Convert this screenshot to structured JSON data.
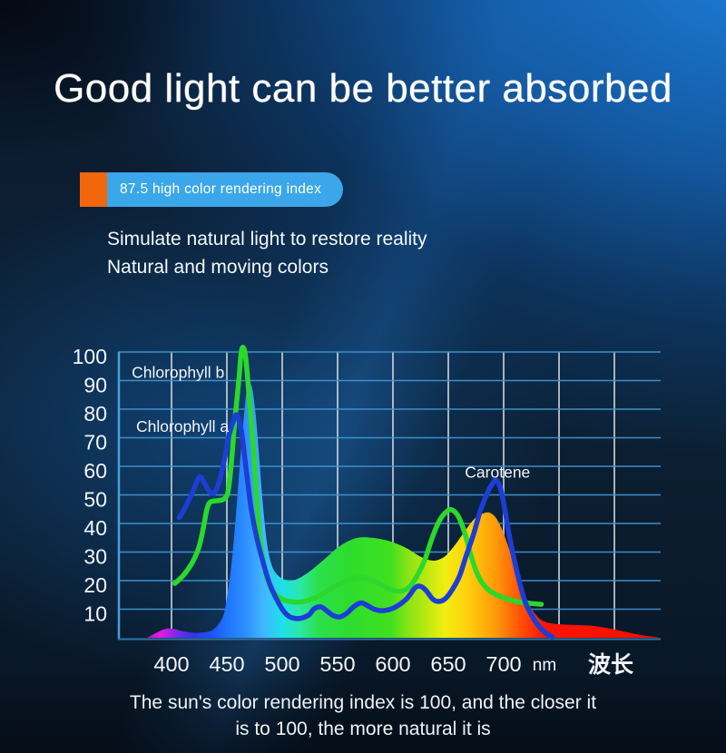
{
  "header": {
    "title": "Good light can be better absorbed"
  },
  "badge": {
    "text": "87.5 high color rendering index",
    "accent_color": "#f2670c",
    "pill_color": "#3ba7ea"
  },
  "subtitle": {
    "line1": "Simulate natural light to restore reality",
    "line2": "Natural and moving colors"
  },
  "caption": {
    "line1": "The sun's color rendering index is 100, and the closer it",
    "line2": "is to 100, the more natural it is"
  },
  "chart_data": {
    "type": "area",
    "title": "",
    "xlabel": "波长",
    "x_unit": "nm",
    "ylim": [
      0,
      100
    ],
    "grid": true,
    "x_axis": {
      "tick_labels": [
        400,
        450,
        500,
        550,
        600,
        650,
        700
      ],
      "gridlines_nm": [
        400,
        450,
        500,
        550,
        600,
        650,
        700,
        750,
        800
      ]
    },
    "y_axis": {
      "tick_labels": [
        100,
        90,
        80,
        70,
        60,
        50,
        40,
        30,
        20,
        10
      ]
    },
    "colors": {
      "h_grid": "#4094d2",
      "v_grid": "#ccd7de",
      "axis": "#4b9fd9",
      "baseline": "#2f74a8",
      "chlorophyll_b_line": "#2bd82b",
      "chlorophyll_a_line": "#1c3ed6",
      "label_text": "#f4f8fb"
    },
    "series": [
      {
        "name": "light-spectrum-area",
        "type": "area",
        "fill": "spectrum-gradient",
        "points": [
          [
            378,
            0
          ],
          [
            385,
            1.5
          ],
          [
            392,
            2.8
          ],
          [
            397,
            3.3
          ],
          [
            403,
            3
          ],
          [
            410,
            2.3
          ],
          [
            418,
            1.8
          ],
          [
            427,
            1.8
          ],
          [
            436,
            2.5
          ],
          [
            442,
            4.5
          ],
          [
            447,
            8
          ],
          [
            450,
            14
          ],
          [
            453,
            22
          ],
          [
            456,
            33
          ],
          [
            459,
            47
          ],
          [
            462,
            62
          ],
          [
            465,
            76
          ],
          [
            468,
            87
          ],
          [
            470,
            89.5
          ],
          [
            473,
            87
          ],
          [
            476,
            78
          ],
          [
            479,
            64
          ],
          [
            482,
            49
          ],
          [
            485,
            37
          ],
          [
            488,
            29
          ],
          [
            492,
            24
          ],
          [
            497,
            21.5
          ],
          [
            503,
            20.2
          ],
          [
            509,
            20
          ],
          [
            516,
            21
          ],
          [
            524,
            23
          ],
          [
            532,
            25.5
          ],
          [
            541,
            28.5
          ],
          [
            550,
            31.5
          ],
          [
            558,
            33.5
          ],
          [
            566,
            34.8
          ],
          [
            573,
            35.2
          ],
          [
            581,
            35
          ],
          [
            589,
            34.5
          ],
          [
            597,
            33.8
          ],
          [
            606,
            32.5
          ],
          [
            614,
            31
          ],
          [
            622,
            29
          ],
          [
            630,
            27.5
          ],
          [
            636,
            27
          ],
          [
            641,
            27.3
          ],
          [
            647,
            28.5
          ],
          [
            652,
            30.5
          ],
          [
            658,
            33.5
          ],
          [
            664,
            36.8
          ],
          [
            670,
            40
          ],
          [
            676,
            42.5
          ],
          [
            682,
            43.6
          ],
          [
            687,
            43.8
          ],
          [
            692,
            42.5
          ],
          [
            696,
            40
          ],
          [
            700,
            36.5
          ],
          [
            705,
            31
          ],
          [
            710,
            25
          ],
          [
            716,
            18
          ],
          [
            722,
            12.5
          ],
          [
            728,
            8.5
          ],
          [
            735,
            6
          ],
          [
            744,
            5
          ],
          [
            755,
            4.6
          ],
          [
            768,
            4.4
          ],
          [
            780,
            4.2
          ],
          [
            793,
            3.4
          ],
          [
            806,
            2.4
          ],
          [
            818,
            1.4
          ],
          [
            830,
            0.6
          ],
          [
            840,
            0.2
          ]
        ]
      },
      {
        "name": "Chlorophyll b",
        "type": "line",
        "color": "#2bd82b",
        "points": [
          [
            403,
            19
          ],
          [
            411,
            22
          ],
          [
            419,
            26.5
          ],
          [
            425,
            32
          ],
          [
            429,
            39
          ],
          [
            432,
            45
          ],
          [
            435,
            47.5
          ],
          [
            442,
            48
          ],
          [
            447,
            48.5
          ],
          [
            451,
            51
          ],
          [
            454,
            61
          ],
          [
            457,
            75
          ],
          [
            461,
            91
          ],
          [
            463,
            100
          ],
          [
            465,
            101.5
          ],
          [
            467,
            98
          ],
          [
            470,
            85
          ],
          [
            474,
            66
          ],
          [
            477,
            48
          ],
          [
            480,
            34
          ],
          [
            484,
            24.5
          ],
          [
            489,
            18
          ],
          [
            495,
            14.8
          ],
          [
            501,
            13.3
          ],
          [
            507,
            12.7
          ],
          [
            516,
            12.5
          ],
          [
            524,
            13.2
          ],
          [
            534,
            14.8
          ],
          [
            544,
            17.2
          ],
          [
            555,
            19.5
          ],
          [
            565,
            20.8
          ],
          [
            573,
            21
          ],
          [
            581,
            20.2
          ],
          [
            589,
            18.6
          ],
          [
            597,
            17
          ],
          [
            604,
            16.3
          ],
          [
            610,
            16.6
          ],
          [
            616,
            18.3
          ],
          [
            622,
            21.8
          ],
          [
            629,
            27.5
          ],
          [
            635,
            34.5
          ],
          [
            642,
            41
          ],
          [
            648,
            44
          ],
          [
            653,
            44.8
          ],
          [
            659,
            42.5
          ],
          [
            665,
            36.5
          ],
          [
            670,
            29.5
          ],
          [
            675,
            23.5
          ],
          [
            681,
            19
          ],
          [
            689,
            16
          ],
          [
            700,
            14
          ],
          [
            712,
            12.7
          ],
          [
            725,
            12
          ],
          [
            734,
            11.7
          ]
        ]
      },
      {
        "name": "Chlorophyll a",
        "type": "line",
        "color": "#1c3ed6",
        "points": [
          [
            407,
            42
          ],
          [
            413,
            46
          ],
          [
            419,
            51
          ],
          [
            424,
            55.5
          ],
          [
            427,
            56
          ],
          [
            432,
            52.5
          ],
          [
            436,
            50.5
          ],
          [
            440,
            51.5
          ],
          [
            444,
            56
          ],
          [
            448,
            63
          ],
          [
            452,
            71
          ],
          [
            457,
            77
          ],
          [
            459,
            78
          ],
          [
            461,
            76
          ],
          [
            464,
            70
          ],
          [
            468,
            57
          ],
          [
            472,
            45
          ],
          [
            477,
            35
          ],
          [
            483,
            26
          ],
          [
            489,
            18.5
          ],
          [
            497,
            12
          ],
          [
            503,
            8.5
          ],
          [
            509,
            7
          ],
          [
            516,
            6.8
          ],
          [
            524,
            8
          ],
          [
            529,
            10.2
          ],
          [
            535,
            10.8
          ],
          [
            540,
            9.5
          ],
          [
            546,
            7.8
          ],
          [
            552,
            7.3
          ],
          [
            558,
            8.5
          ],
          [
            565,
            11
          ],
          [
            571,
            12.2
          ],
          [
            576,
            11.5
          ],
          [
            583,
            10
          ],
          [
            591,
            9.5
          ],
          [
            601,
            10.5
          ],
          [
            612,
            13.5
          ],
          [
            620,
            17.5
          ],
          [
            625,
            18
          ],
          [
            630,
            16.5
          ],
          [
            636,
            13.5
          ],
          [
            641,
            12.7
          ],
          [
            647,
            13.6
          ],
          [
            653,
            16.5
          ],
          [
            660,
            21.5
          ],
          [
            666,
            28.5
          ],
          [
            673,
            36.5
          ],
          [
            679,
            44.5
          ],
          [
            685,
            50.5
          ],
          [
            690,
            54
          ],
          [
            693,
            55.2
          ],
          [
            697,
            52.5
          ],
          [
            701,
            45
          ],
          [
            705,
            36
          ],
          [
            710,
            26.5
          ],
          [
            715,
            18.5
          ],
          [
            720,
            12
          ],
          [
            729,
            5.5
          ],
          [
            737,
            2
          ],
          [
            744,
            0.3
          ]
        ]
      }
    ],
    "annotations": [
      {
        "text": "Chlorophyll b",
        "nm": 364,
        "value": 91
      },
      {
        "text": "Chlorophyll a",
        "nm": 368,
        "value": 72
      },
      {
        "text": "Carotene",
        "nm": 665,
        "value": 56
      }
    ],
    "spectrum_stops": [
      {
        "nm": 378,
        "color": "#b014d0"
      },
      {
        "nm": 390,
        "color": "#e818e0"
      },
      {
        "nm": 405,
        "color": "#7a2ae8"
      },
      {
        "nm": 420,
        "color": "#3433f0"
      },
      {
        "nm": 435,
        "color": "#1e50f8"
      },
      {
        "nm": 450,
        "color": "#1e74ff"
      },
      {
        "nm": 465,
        "color": "#2b8aff"
      },
      {
        "nm": 483,
        "color": "#41b6ff"
      },
      {
        "nm": 500,
        "color": "#1ee0e8"
      },
      {
        "nm": 516,
        "color": "#2ae8a8"
      },
      {
        "nm": 532,
        "color": "#2ce04e"
      },
      {
        "nm": 560,
        "color": "#2edc2e"
      },
      {
        "nm": 598,
        "color": "#40e020"
      },
      {
        "nm": 614,
        "color": "#8ae414"
      },
      {
        "nm": 647,
        "color": "#f0ee10"
      },
      {
        "nm": 667,
        "color": "#ffd00c"
      },
      {
        "nm": 692,
        "color": "#ff9c08"
      },
      {
        "nm": 716,
        "color": "#ff4e06"
      },
      {
        "nm": 737,
        "color": "#ff1404"
      },
      {
        "nm": 840,
        "color": "#f01000"
      }
    ]
  }
}
